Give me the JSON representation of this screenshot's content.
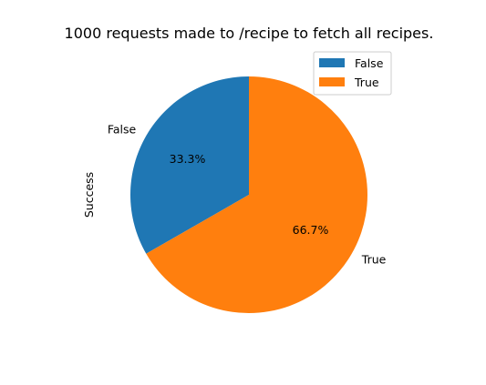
{
  "chart_data": {
    "type": "pie",
    "title": "1000 requests made to /recipe to fetch all recipes.",
    "ylabel": "Success",
    "categories": [
      "False",
      "True"
    ],
    "values": [
      333,
      667
    ],
    "percent_labels": [
      "33.3%",
      "66.7%"
    ],
    "colors": [
      "#1f77b4",
      "#ff7f0e"
    ],
    "legend": {
      "placement": "top-right",
      "entries": [
        "False",
        "True"
      ]
    },
    "start_angle_deg": 90,
    "direction": "counterclockwise"
  }
}
